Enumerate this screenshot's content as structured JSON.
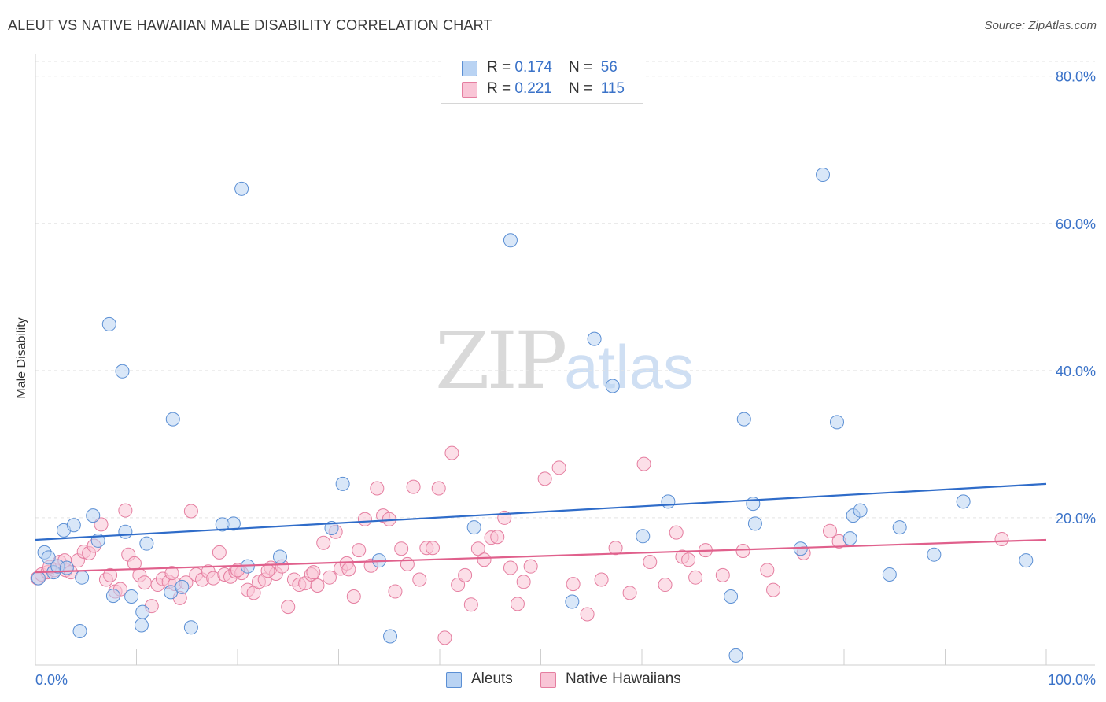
{
  "title": "ALEUT VS NATIVE HAWAIIAN MALE DISABILITY CORRELATION CHART",
  "source": "Source: ZipAtlas.com",
  "watermark": {
    "zip": "ZIP",
    "atlas": "atlas"
  },
  "legend": {
    "series1": {
      "r_label": "R = ",
      "r_value": "0.174",
      "n_label": "N = ",
      "n_value": "56"
    },
    "series2": {
      "r_label": "R = ",
      "r_value": "0.221",
      "n_label": "N = ",
      "n_value": "115"
    }
  },
  "bottom_legend": {
    "series1": "Aleuts",
    "series2": "Native Hawaiians"
  },
  "colors": {
    "aleut_fill": "#b9d3f3",
    "aleut_stroke": "#5b8fd4",
    "aleut_line": "#2f6cc9",
    "hawaiian_fill": "#f9c5d6",
    "hawaiian_stroke": "#e57ea0",
    "hawaiian_line": "#e0608c",
    "grid": "#e3e3e3",
    "axis_text": "#3a72c8"
  },
  "chart_data": {
    "type": "scatter",
    "title": "ALEUT VS NATIVE HAWAIIAN MALE DISABILITY CORRELATION CHART",
    "xlabel": "",
    "ylabel": "Male Disability",
    "xlim": [
      0,
      100
    ],
    "ylim": [
      0,
      82
    ],
    "x_tick_labels": [
      "0.0%",
      "100.0%"
    ],
    "y_ticks": [
      20,
      40,
      60,
      80
    ],
    "y_tick_labels": [
      "20.0%",
      "40.0%",
      "60.0%",
      "80.0%"
    ],
    "series": [
      {
        "name": "Aleuts",
        "trend": [
          [
            0,
            17.0
          ],
          [
            100,
            24.6
          ]
        ],
        "points": [
          [
            0.3,
            11.8
          ],
          [
            0.9,
            15.3
          ],
          [
            1.3,
            14.6
          ],
          [
            1.8,
            12.6
          ],
          [
            2.2,
            13.4
          ],
          [
            2.8,
            18.3
          ],
          [
            3.1,
            13.2
          ],
          [
            3.8,
            19.0
          ],
          [
            4.4,
            4.6
          ],
          [
            4.6,
            11.9
          ],
          [
            5.7,
            20.3
          ],
          [
            6.2,
            16.9
          ],
          [
            7.3,
            46.3
          ],
          [
            7.7,
            9.4
          ],
          [
            8.6,
            39.9
          ],
          [
            8.9,
            18.1
          ],
          [
            9.5,
            9.3
          ],
          [
            10.6,
            7.2
          ],
          [
            10.5,
            5.4
          ],
          [
            11.0,
            16.5
          ],
          [
            13.4,
            9.9
          ],
          [
            13.6,
            33.4
          ],
          [
            14.5,
            10.6
          ],
          [
            15.4,
            5.1
          ],
          [
            18.5,
            19.1
          ],
          [
            19.6,
            19.2
          ],
          [
            20.4,
            64.7
          ],
          [
            21.0,
            13.4
          ],
          [
            24.2,
            14.7
          ],
          [
            29.3,
            18.6
          ],
          [
            30.4,
            24.6
          ],
          [
            34.0,
            14.2
          ],
          [
            35.1,
            3.9
          ],
          [
            43.4,
            18.7
          ],
          [
            47.0,
            57.7
          ],
          [
            53.1,
            8.6
          ],
          [
            55.3,
            44.3
          ],
          [
            57.1,
            37.9
          ],
          [
            60.1,
            17.5
          ],
          [
            62.6,
            22.2
          ],
          [
            68.8,
            9.3
          ],
          [
            69.3,
            1.3
          ],
          [
            70.1,
            33.4
          ],
          [
            71.0,
            21.9
          ],
          [
            71.2,
            19.2
          ],
          [
            75.7,
            15.8
          ],
          [
            77.9,
            66.6
          ],
          [
            79.3,
            33.0
          ],
          [
            80.6,
            17.2
          ],
          [
            80.9,
            20.3
          ],
          [
            81.6,
            21.0
          ],
          [
            84.5,
            12.3
          ],
          [
            85.5,
            18.7
          ],
          [
            88.9,
            15.0
          ],
          [
            91.8,
            22.2
          ],
          [
            98.0,
            14.2
          ]
        ]
      },
      {
        "name": "Native Hawaiians",
        "trend": [
          [
            0,
            12.6
          ],
          [
            100,
            17.0
          ]
        ],
        "points": [
          [
            0.2,
            11.8
          ],
          [
            0.6,
            12.3
          ],
          [
            1.2,
            12.6
          ],
          [
            1.9,
            12.9
          ],
          [
            2.4,
            14.0
          ],
          [
            3.0,
            12.9
          ],
          [
            3.5,
            12.6
          ],
          [
            4.2,
            14.2
          ],
          [
            4.8,
            15.4
          ],
          [
            5.3,
            15.2
          ],
          [
            5.8,
            16.2
          ],
          [
            6.5,
            19.1
          ],
          [
            7.0,
            11.6
          ],
          [
            7.4,
            12.2
          ],
          [
            7.9,
            10.0
          ],
          [
            8.4,
            10.3
          ],
          [
            8.9,
            21.0
          ],
          [
            9.2,
            15.0
          ],
          [
            9.8,
            13.8
          ],
          [
            10.3,
            12.2
          ],
          [
            10.8,
            11.2
          ],
          [
            11.5,
            8.0
          ],
          [
            12.1,
            10.9
          ],
          [
            12.6,
            11.7
          ],
          [
            13.2,
            11.3
          ],
          [
            13.8,
            11.0
          ],
          [
            14.3,
            9.1
          ],
          [
            14.9,
            11.2
          ],
          [
            15.4,
            20.9
          ],
          [
            15.9,
            12.3
          ],
          [
            16.5,
            11.6
          ],
          [
            17.1,
            12.7
          ],
          [
            17.6,
            11.8
          ],
          [
            18.2,
            15.3
          ],
          [
            18.7,
            12.3
          ],
          [
            19.3,
            12.0
          ],
          [
            19.8,
            12.7
          ],
          [
            20.4,
            12.5
          ],
          [
            21.0,
            10.2
          ],
          [
            21.6,
            9.8
          ],
          [
            22.1,
            11.3
          ],
          [
            22.7,
            11.6
          ],
          [
            23.3,
            13.2
          ],
          [
            23.8,
            12.4
          ],
          [
            24.4,
            13.4
          ],
          [
            25.0,
            7.9
          ],
          [
            25.6,
            11.6
          ],
          [
            26.1,
            10.9
          ],
          [
            26.7,
            11.1
          ],
          [
            27.3,
            12.3
          ],
          [
            27.9,
            10.8
          ],
          [
            28.5,
            16.6
          ],
          [
            29.1,
            11.9
          ],
          [
            29.7,
            18.1
          ],
          [
            30.2,
            13.1
          ],
          [
            30.8,
            13.8
          ],
          [
            31.5,
            9.3
          ],
          [
            32.0,
            15.6
          ],
          [
            32.6,
            19.8
          ],
          [
            33.2,
            13.5
          ],
          [
            33.8,
            24.0
          ],
          [
            34.4,
            20.3
          ],
          [
            35.0,
            19.8
          ],
          [
            35.6,
            10.0
          ],
          [
            36.2,
            15.8
          ],
          [
            36.8,
            13.7
          ],
          [
            37.4,
            24.2
          ],
          [
            38.0,
            11.6
          ],
          [
            38.7,
            15.9
          ],
          [
            39.3,
            15.9
          ],
          [
            39.9,
            24.0
          ],
          [
            40.5,
            3.7
          ],
          [
            41.2,
            28.8
          ],
          [
            41.8,
            10.9
          ],
          [
            42.5,
            12.2
          ],
          [
            43.1,
            8.2
          ],
          [
            43.8,
            15.8
          ],
          [
            44.4,
            14.3
          ],
          [
            45.1,
            17.3
          ],
          [
            45.7,
            17.4
          ],
          [
            46.4,
            20.0
          ],
          [
            47.0,
            13.2
          ],
          [
            47.7,
            8.3
          ],
          [
            48.3,
            11.3
          ],
          [
            49.0,
            13.4
          ],
          [
            50.4,
            25.3
          ],
          [
            51.8,
            26.8
          ],
          [
            53.2,
            11.0
          ],
          [
            54.6,
            6.9
          ],
          [
            56.0,
            11.6
          ],
          [
            57.4,
            15.9
          ],
          [
            58.8,
            9.8
          ],
          [
            60.2,
            27.3
          ],
          [
            60.8,
            14.0
          ],
          [
            62.3,
            10.9
          ],
          [
            63.4,
            18.0
          ],
          [
            64.0,
            14.7
          ],
          [
            64.6,
            14.3
          ],
          [
            65.3,
            11.9
          ],
          [
            66.3,
            15.6
          ],
          [
            68.0,
            12.2
          ],
          [
            70.0,
            15.5
          ],
          [
            72.4,
            12.9
          ],
          [
            73.0,
            10.2
          ],
          [
            76.0,
            15.2
          ],
          [
            78.6,
            18.2
          ],
          [
            79.5,
            16.8
          ],
          [
            95.6,
            17.1
          ],
          [
            1.4,
            13.3
          ],
          [
            2.9,
            14.2
          ],
          [
            20.0,
            12.9
          ],
          [
            23.0,
            12.8
          ],
          [
            31.0,
            13.0
          ],
          [
            27.5,
            12.6
          ],
          [
            13.5,
            12.5
          ]
        ]
      }
    ]
  }
}
